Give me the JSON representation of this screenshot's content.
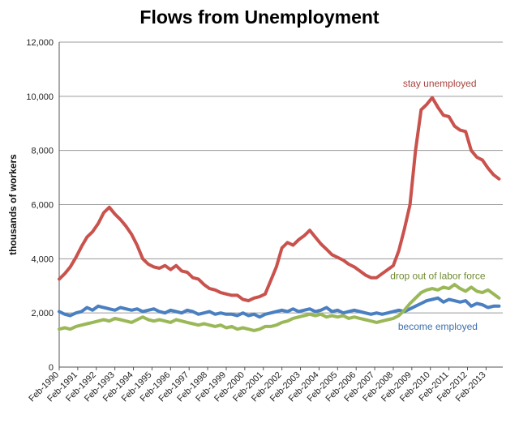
{
  "chart_data": {
    "type": "line",
    "title": "Flows from Unemployment",
    "xlabel": "",
    "ylabel": "thousands of workers",
    "ylim": [
      0,
      12000
    ],
    "yticks": [
      0,
      2000,
      4000,
      6000,
      8000,
      10000,
      12000
    ],
    "ytick_labels": [
      "0",
      "2,000",
      "4,000",
      "6,000",
      "8,000",
      "10,000",
      "12,000"
    ],
    "xlim": [
      1990.0,
      2013.9
    ],
    "xtick_labels": [
      "Feb-1990",
      "Feb-1991",
      "Feb-1992",
      "Feb-1993",
      "Feb-1994",
      "Feb-1995",
      "Feb-1996",
      "Feb-1997",
      "Feb-1998",
      "Feb-1999",
      "Feb-2000",
      "Feb-2001",
      "Feb-2002",
      "Feb-2003",
      "Feb-2004",
      "Feb-2005",
      "Feb-2006",
      "Feb-2007",
      "Feb-2008",
      "Feb-2009",
      "Feb-2010",
      "Feb-2011",
      "Feb-2012",
      "Feb-2013"
    ],
    "xtick_values": [
      1990,
      1991,
      1992,
      1993,
      1994,
      1995,
      1996,
      1997,
      1998,
      1999,
      2000,
      2001,
      2002,
      2003,
      2004,
      2005,
      2006,
      2007,
      2008,
      2009,
      2010,
      2011,
      2012,
      2013
    ],
    "grid": "horizontal",
    "legend": "inline labels",
    "series": [
      {
        "name": "stay unemployed",
        "color": "#c9524d",
        "x": [
          1990.0,
          1990.3,
          1990.6,
          1990.9,
          1991.2,
          1991.5,
          1991.8,
          1992.1,
          1992.4,
          1992.7,
          1993.0,
          1993.3,
          1993.6,
          1993.9,
          1994.2,
          1994.5,
          1994.8,
          1995.1,
          1995.4,
          1995.7,
          1996.0,
          1996.3,
          1996.6,
          1996.9,
          1997.2,
          1997.5,
          1997.8,
          1998.1,
          1998.4,
          1998.7,
          1999.0,
          1999.3,
          1999.6,
          1999.9,
          2000.2,
          2000.5,
          2000.8,
          2001.1,
          2001.4,
          2001.7,
          2002.0,
          2002.3,
          2002.6,
          2002.9,
          2003.2,
          2003.5,
          2003.8,
          2004.1,
          2004.4,
          2004.7,
          2005.0,
          2005.3,
          2005.6,
          2005.9,
          2006.2,
          2006.5,
          2006.8,
          2007.1,
          2007.4,
          2007.7,
          2008.0,
          2008.3,
          2008.6,
          2008.9,
          2009.2,
          2009.5,
          2009.8,
          2010.1,
          2010.4,
          2010.7,
          2011.0,
          2011.3,
          2011.6,
          2011.9,
          2012.2,
          2012.5,
          2012.8,
          2013.1,
          2013.4,
          2013.7
        ],
        "y": [
          3250,
          3450,
          3700,
          4050,
          4450,
          4800,
          5000,
          5300,
          5700,
          5900,
          5650,
          5450,
          5200,
          4900,
          4500,
          4000,
          3800,
          3700,
          3650,
          3750,
          3600,
          3750,
          3550,
          3500,
          3300,
          3250,
          3050,
          2900,
          2850,
          2750,
          2700,
          2650,
          2650,
          2500,
          2450,
          2550,
          2600,
          2700,
          3200,
          3700,
          4400,
          4600,
          4500,
          4700,
          4850,
          5050,
          4800,
          4550,
          4350,
          4150,
          4050,
          3950,
          3800,
          3700,
          3550,
          3400,
          3300,
          3300,
          3450,
          3600,
          3750,
          4300,
          5100,
          6000,
          8000,
          9500,
          9700,
          9950,
          9600,
          9300,
          9250,
          8900,
          8750,
          8700,
          8000,
          7750,
          7650,
          7350,
          7100,
          6950
        ]
      },
      {
        "name": "become employed",
        "color": "#4a7fc0",
        "x": [
          1990.0,
          1990.3,
          1990.6,
          1990.9,
          1991.2,
          1991.5,
          1991.8,
          1992.1,
          1992.4,
          1992.7,
          1993.0,
          1993.3,
          1993.6,
          1993.9,
          1994.2,
          1994.5,
          1994.8,
          1995.1,
          1995.4,
          1995.7,
          1996.0,
          1996.3,
          1996.6,
          1996.9,
          1997.2,
          1997.5,
          1997.8,
          1998.1,
          1998.4,
          1998.7,
          1999.0,
          1999.3,
          1999.6,
          1999.9,
          2000.2,
          2000.5,
          2000.8,
          2001.1,
          2001.4,
          2001.7,
          2002.0,
          2002.3,
          2002.6,
          2002.9,
          2003.2,
          2003.5,
          2003.8,
          2004.1,
          2004.4,
          2004.7,
          2005.0,
          2005.3,
          2005.6,
          2005.9,
          2006.2,
          2006.5,
          2006.8,
          2007.1,
          2007.4,
          2007.7,
          2008.0,
          2008.3,
          2008.6,
          2008.9,
          2009.2,
          2009.5,
          2009.8,
          2010.1,
          2010.4,
          2010.7,
          2011.0,
          2011.3,
          2011.6,
          2011.9,
          2012.2,
          2012.5,
          2012.8,
          2013.1,
          2013.4,
          2013.7
        ],
        "y": [
          2050,
          1950,
          1900,
          2000,
          2050,
          2200,
          2100,
          2250,
          2200,
          2150,
          2100,
          2200,
          2150,
          2100,
          2150,
          2050,
          2100,
          2150,
          2050,
          2000,
          2100,
          2050,
          2000,
          2100,
          2050,
          1950,
          2000,
          2050,
          1950,
          2000,
          1950,
          1950,
          1900,
          2000,
          1900,
          1950,
          1850,
          1950,
          2000,
          2050,
          2100,
          2050,
          2150,
          2050,
          2100,
          2150,
          2050,
          2100,
          2200,
          2050,
          2100,
          2000,
          2050,
          2100,
          2050,
          2000,
          1950,
          2000,
          1950,
          2000,
          2050,
          2100,
          2050,
          2150,
          2250,
          2350,
          2450,
          2500,
          2550,
          2400,
          2500,
          2450,
          2400,
          2450,
          2250,
          2350,
          2300,
          2200,
          2250,
          2250
        ]
      },
      {
        "name": "drop out of labor force",
        "color": "#9ab857",
        "x": [
          1990.0,
          1990.3,
          1990.6,
          1990.9,
          1991.2,
          1991.5,
          1991.8,
          1992.1,
          1992.4,
          1992.7,
          1993.0,
          1993.3,
          1993.6,
          1993.9,
          1994.2,
          1994.5,
          1994.8,
          1995.1,
          1995.4,
          1995.7,
          1996.0,
          1996.3,
          1996.6,
          1996.9,
          1997.2,
          1997.5,
          1997.8,
          1998.1,
          1998.4,
          1998.7,
          1999.0,
          1999.3,
          1999.6,
          1999.9,
          2000.2,
          2000.5,
          2000.8,
          2001.1,
          2001.4,
          2001.7,
          2002.0,
          2002.3,
          2002.6,
          2002.9,
          2003.2,
          2003.5,
          2003.8,
          2004.1,
          2004.4,
          2004.7,
          2005.0,
          2005.3,
          2005.6,
          2005.9,
          2006.2,
          2006.5,
          2006.8,
          2007.1,
          2007.4,
          2007.7,
          2008.0,
          2008.3,
          2008.6,
          2008.9,
          2009.2,
          2009.5,
          2009.8,
          2010.1,
          2010.4,
          2010.7,
          2011.0,
          2011.3,
          2011.6,
          2011.9,
          2012.2,
          2012.5,
          2012.8,
          2013.1,
          2013.4,
          2013.7
        ],
        "y": [
          1400,
          1450,
          1400,
          1500,
          1550,
          1600,
          1650,
          1700,
          1750,
          1700,
          1800,
          1750,
          1700,
          1650,
          1750,
          1850,
          1750,
          1700,
          1750,
          1700,
          1650,
          1750,
          1700,
          1650,
          1600,
          1550,
          1600,
          1550,
          1500,
          1550,
          1450,
          1500,
          1400,
          1450,
          1400,
          1350,
          1400,
          1500,
          1500,
          1550,
          1650,
          1700,
          1800,
          1850,
          1900,
          1950,
          1900,
          1950,
          1850,
          1900,
          1850,
          1900,
          1800,
          1850,
          1800,
          1750,
          1700,
          1650,
          1700,
          1750,
          1800,
          1900,
          2100,
          2350,
          2550,
          2750,
          2850,
          2900,
          2850,
          2950,
          2900,
          3050,
          2900,
          2800,
          2950,
          2800,
          2750,
          2850,
          2700,
          2550
        ]
      }
    ]
  }
}
